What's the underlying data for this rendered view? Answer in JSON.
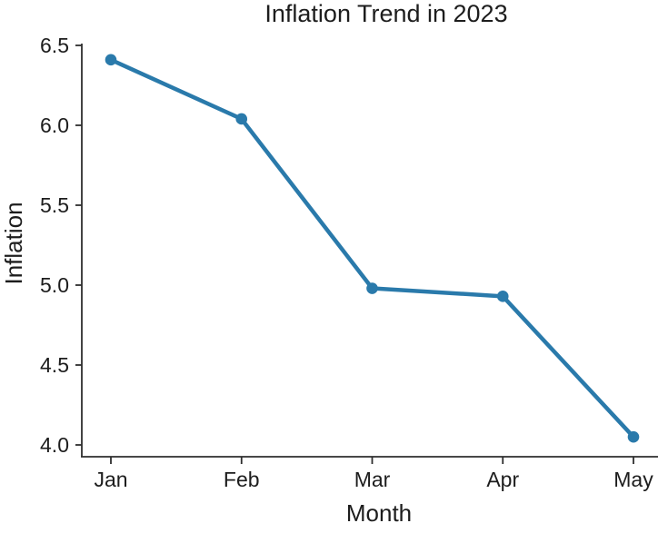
{
  "chart_data": {
    "type": "line",
    "title": "Inflation Trend in 2023",
    "xlabel": "Month",
    "ylabel": "Inflation",
    "categories": [
      "Jan",
      "Feb",
      "Mar",
      "Apr",
      "May"
    ],
    "series": [
      {
        "name": "Inflation",
        "values": [
          6.41,
          6.04,
          4.98,
          4.93,
          4.05
        ]
      }
    ],
    "yticks": [
      4.0,
      4.5,
      5.0,
      5.5,
      6.0,
      6.5
    ],
    "ylim": [
      3.93,
      6.5
    ],
    "grid": false,
    "legend": false,
    "line_color": "#2a7aab",
    "marker": "circle",
    "axis_color": "#2e2e2e",
    "text_color": "#1d1d1d"
  }
}
